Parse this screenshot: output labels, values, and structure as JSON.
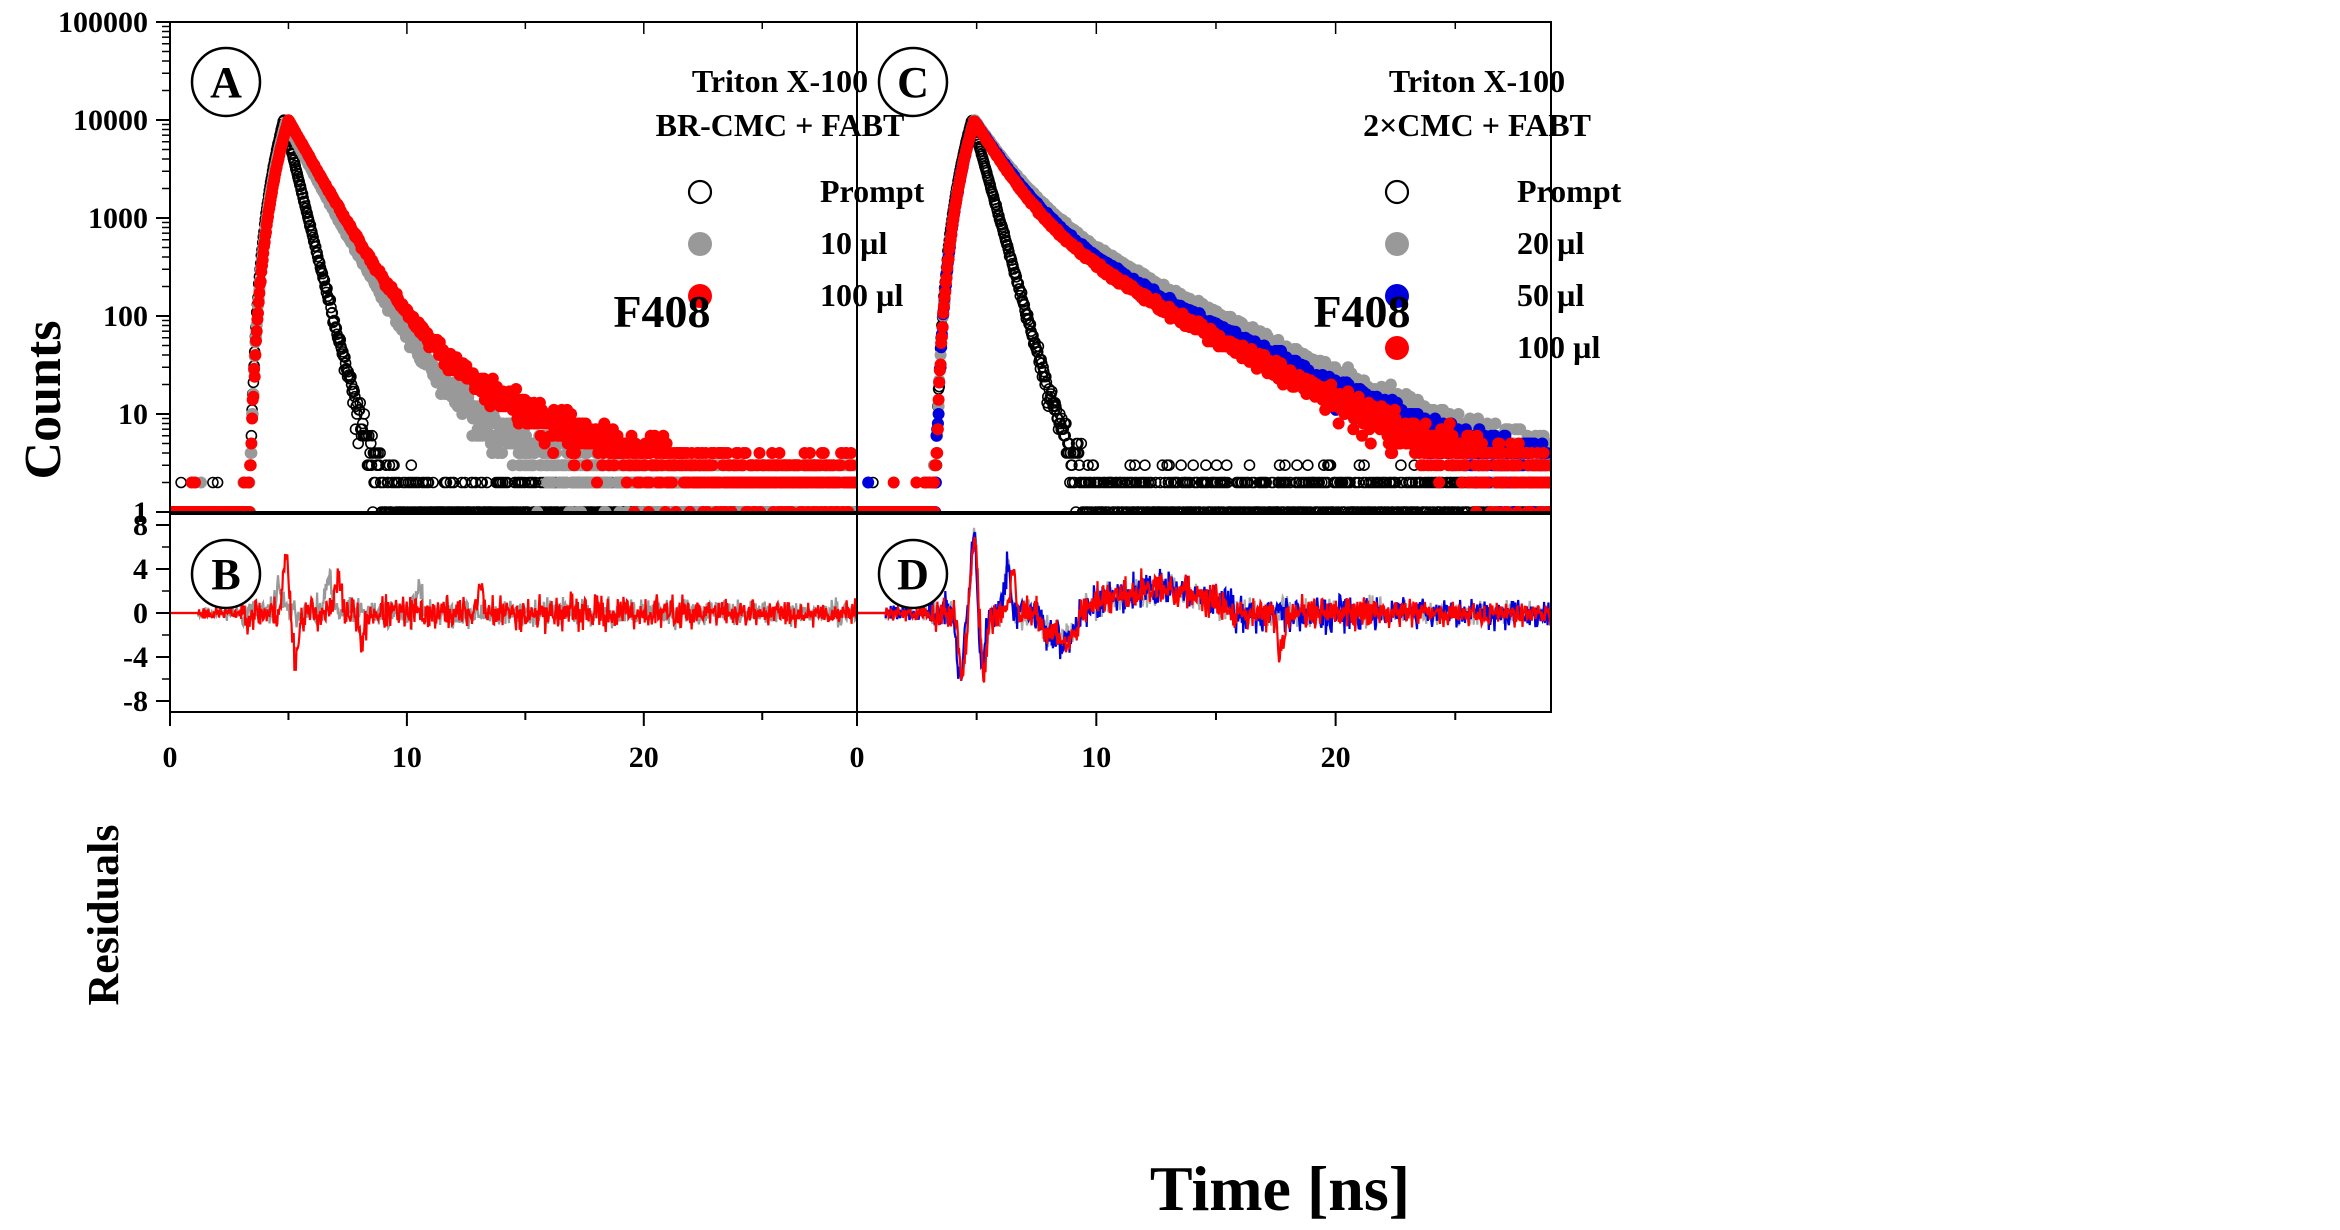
{
  "chart_data": [
    {
      "panel": "A",
      "type": "scatter",
      "scale_y": "log",
      "xlim": [
        0,
        29
      ],
      "ylim": [
        1,
        100000
      ],
      "yticks": [
        1,
        10,
        100,
        1000,
        10000,
        100000
      ],
      "ytick_labels": [
        "1",
        "10",
        "100",
        "1000",
        "10000",
        "100000"
      ],
      "legend_title": [
        "Triton X-100",
        "BR-CMC + FABT"
      ],
      "annotation": "F408",
      "series": [
        {
          "name": "Prompt",
          "style": "open",
          "color": "#000000",
          "onset": 3.3,
          "peak_x": 4.8,
          "rise": 0.42,
          "peak": 10000,
          "decay": [
            [
              1.0,
              0.45
            ]
          ],
          "bg": 1
        },
        {
          "name": "10  µl",
          "style": "filled",
          "color": "#999999",
          "onset": 3.3,
          "peak_x": 4.9,
          "rise": 0.45,
          "peak": 9500,
          "decay": [
            [
              0.985,
              0.95
            ],
            [
              0.015,
              2.6
            ]
          ],
          "bg": 1.6
        },
        {
          "name": "100  µl",
          "style": "filled",
          "color": "#ff0000",
          "onset": 3.3,
          "peak_x": 5.0,
          "rise": 0.45,
          "peak": 10000,
          "decay": [
            [
              0.98,
              1.0
            ],
            [
              0.02,
              3.2
            ]
          ],
          "bg": 1.9
        }
      ]
    },
    {
      "panel": "C",
      "type": "scatter",
      "scale_y": "log",
      "xlim": [
        0,
        29
      ],
      "ylim": [
        1,
        100000
      ],
      "legend_title": [
        "Triton X-100",
        "2×CMC + FABT"
      ],
      "annotation": "F408",
      "series": [
        {
          "name": "Prompt",
          "style": "open",
          "color": "#000000",
          "onset": 3.2,
          "peak_x": 4.8,
          "rise": 0.42,
          "peak": 10000,
          "decay": [
            [
              1.0,
              0.5
            ]
          ],
          "bg": 1.3
        },
        {
          "name": "20  µl",
          "style": "filled",
          "color": "#999999",
          "onset": 3.2,
          "peak_x": 4.9,
          "rise": 0.45,
          "peak": 10000,
          "decay": [
            [
              0.82,
              1.1
            ],
            [
              0.18,
              3.5
            ]
          ],
          "bg": 1.7
        },
        {
          "name": "50  µl",
          "style": "filled",
          "color": "#0000dd",
          "onset": 3.2,
          "peak_x": 4.9,
          "rise": 0.45,
          "peak": 9800,
          "decay": [
            [
              0.84,
              1.05
            ],
            [
              0.16,
              3.3
            ]
          ],
          "bg": 1.7
        },
        {
          "name": "100  µl",
          "style": "filled",
          "color": "#ff0000",
          "onset": 3.2,
          "peak_x": 4.9,
          "rise": 0.45,
          "peak": 9800,
          "decay": [
            [
              0.86,
              1.0
            ],
            [
              0.14,
              3.2
            ]
          ],
          "bg": 1.7
        }
      ]
    },
    {
      "panel": "B",
      "type": "line",
      "xlim": [
        0,
        29
      ],
      "ylim": [
        -9,
        9
      ],
      "yticks": [
        -8,
        -4,
        0,
        4,
        8
      ],
      "ytick_labels": [
        "-8",
        "-4",
        "0",
        "4",
        "8"
      ],
      "series": [
        {
          "name": "10  µl",
          "color": "#999999",
          "start": 1.2,
          "spikes": [
            [
              4.6,
              2.5
            ],
            [
              6.7,
              3.0
            ],
            [
              10.5,
              2.0
            ]
          ],
          "noise": 1.3,
          "seed": 11
        },
        {
          "name": "100  µl",
          "color": "#ff0000",
          "start": 1.2,
          "spikes": [
            [
              4.9,
              5.0
            ],
            [
              5.3,
              -4.0
            ],
            [
              7.1,
              3.0
            ],
            [
              8.1,
              -2.5
            ],
            [
              13.1,
              2.2
            ]
          ],
          "noise": 1.5,
          "seed": 23
        }
      ]
    },
    {
      "panel": "D",
      "type": "line",
      "xlim": [
        0,
        29
      ],
      "ylim": [
        -9,
        9
      ],
      "series": [
        {
          "name": "20  µl",
          "color": "#aaaaaa",
          "start": 1.2,
          "spikes": [
            [
              4.4,
              -5.5
            ],
            [
              4.9,
              7.0
            ],
            [
              5.3,
              -5.0
            ],
            [
              6.3,
              4.0
            ]
          ],
          "noise": 1.3,
          "seed": 31,
          "wave": [
            [
              9,
              16,
              2.0
            ]
          ]
        },
        {
          "name": "50  µl",
          "color": "#0000dd",
          "start": 1.2,
          "spikes": [
            [
              4.3,
              -6.0
            ],
            [
              4.9,
              7.5
            ],
            [
              5.2,
              -5.5
            ],
            [
              6.3,
              4.5
            ]
          ],
          "noise": 1.6,
          "seed": 47,
          "wave": [
            [
              9,
              16,
              2.2
            ]
          ]
        },
        {
          "name": "100  µl",
          "color": "#ff0000",
          "start": 1.2,
          "spikes": [
            [
              4.4,
              -5.8
            ],
            [
              4.9,
              7.3
            ],
            [
              5.3,
              -5.5
            ],
            [
              6.5,
              4.2
            ],
            [
              17.7,
              -3.5
            ]
          ],
          "noise": 1.5,
          "seed": 59,
          "wave": [
            [
              9,
              16,
              2.2
            ]
          ]
        }
      ]
    }
  ],
  "xaxis": {
    "title": "Time [ns]",
    "ticks": [
      0,
      10,
      20
    ],
    "tick_labels": [
      "0",
      "10",
      "20"
    ],
    "right_panel_tick_labels": [
      "0",
      "10",
      "20"
    ],
    "xlim": [
      0,
      29
    ]
  },
  "ylabels": {
    "top": "Counts",
    "bottom": "Residuals"
  }
}
